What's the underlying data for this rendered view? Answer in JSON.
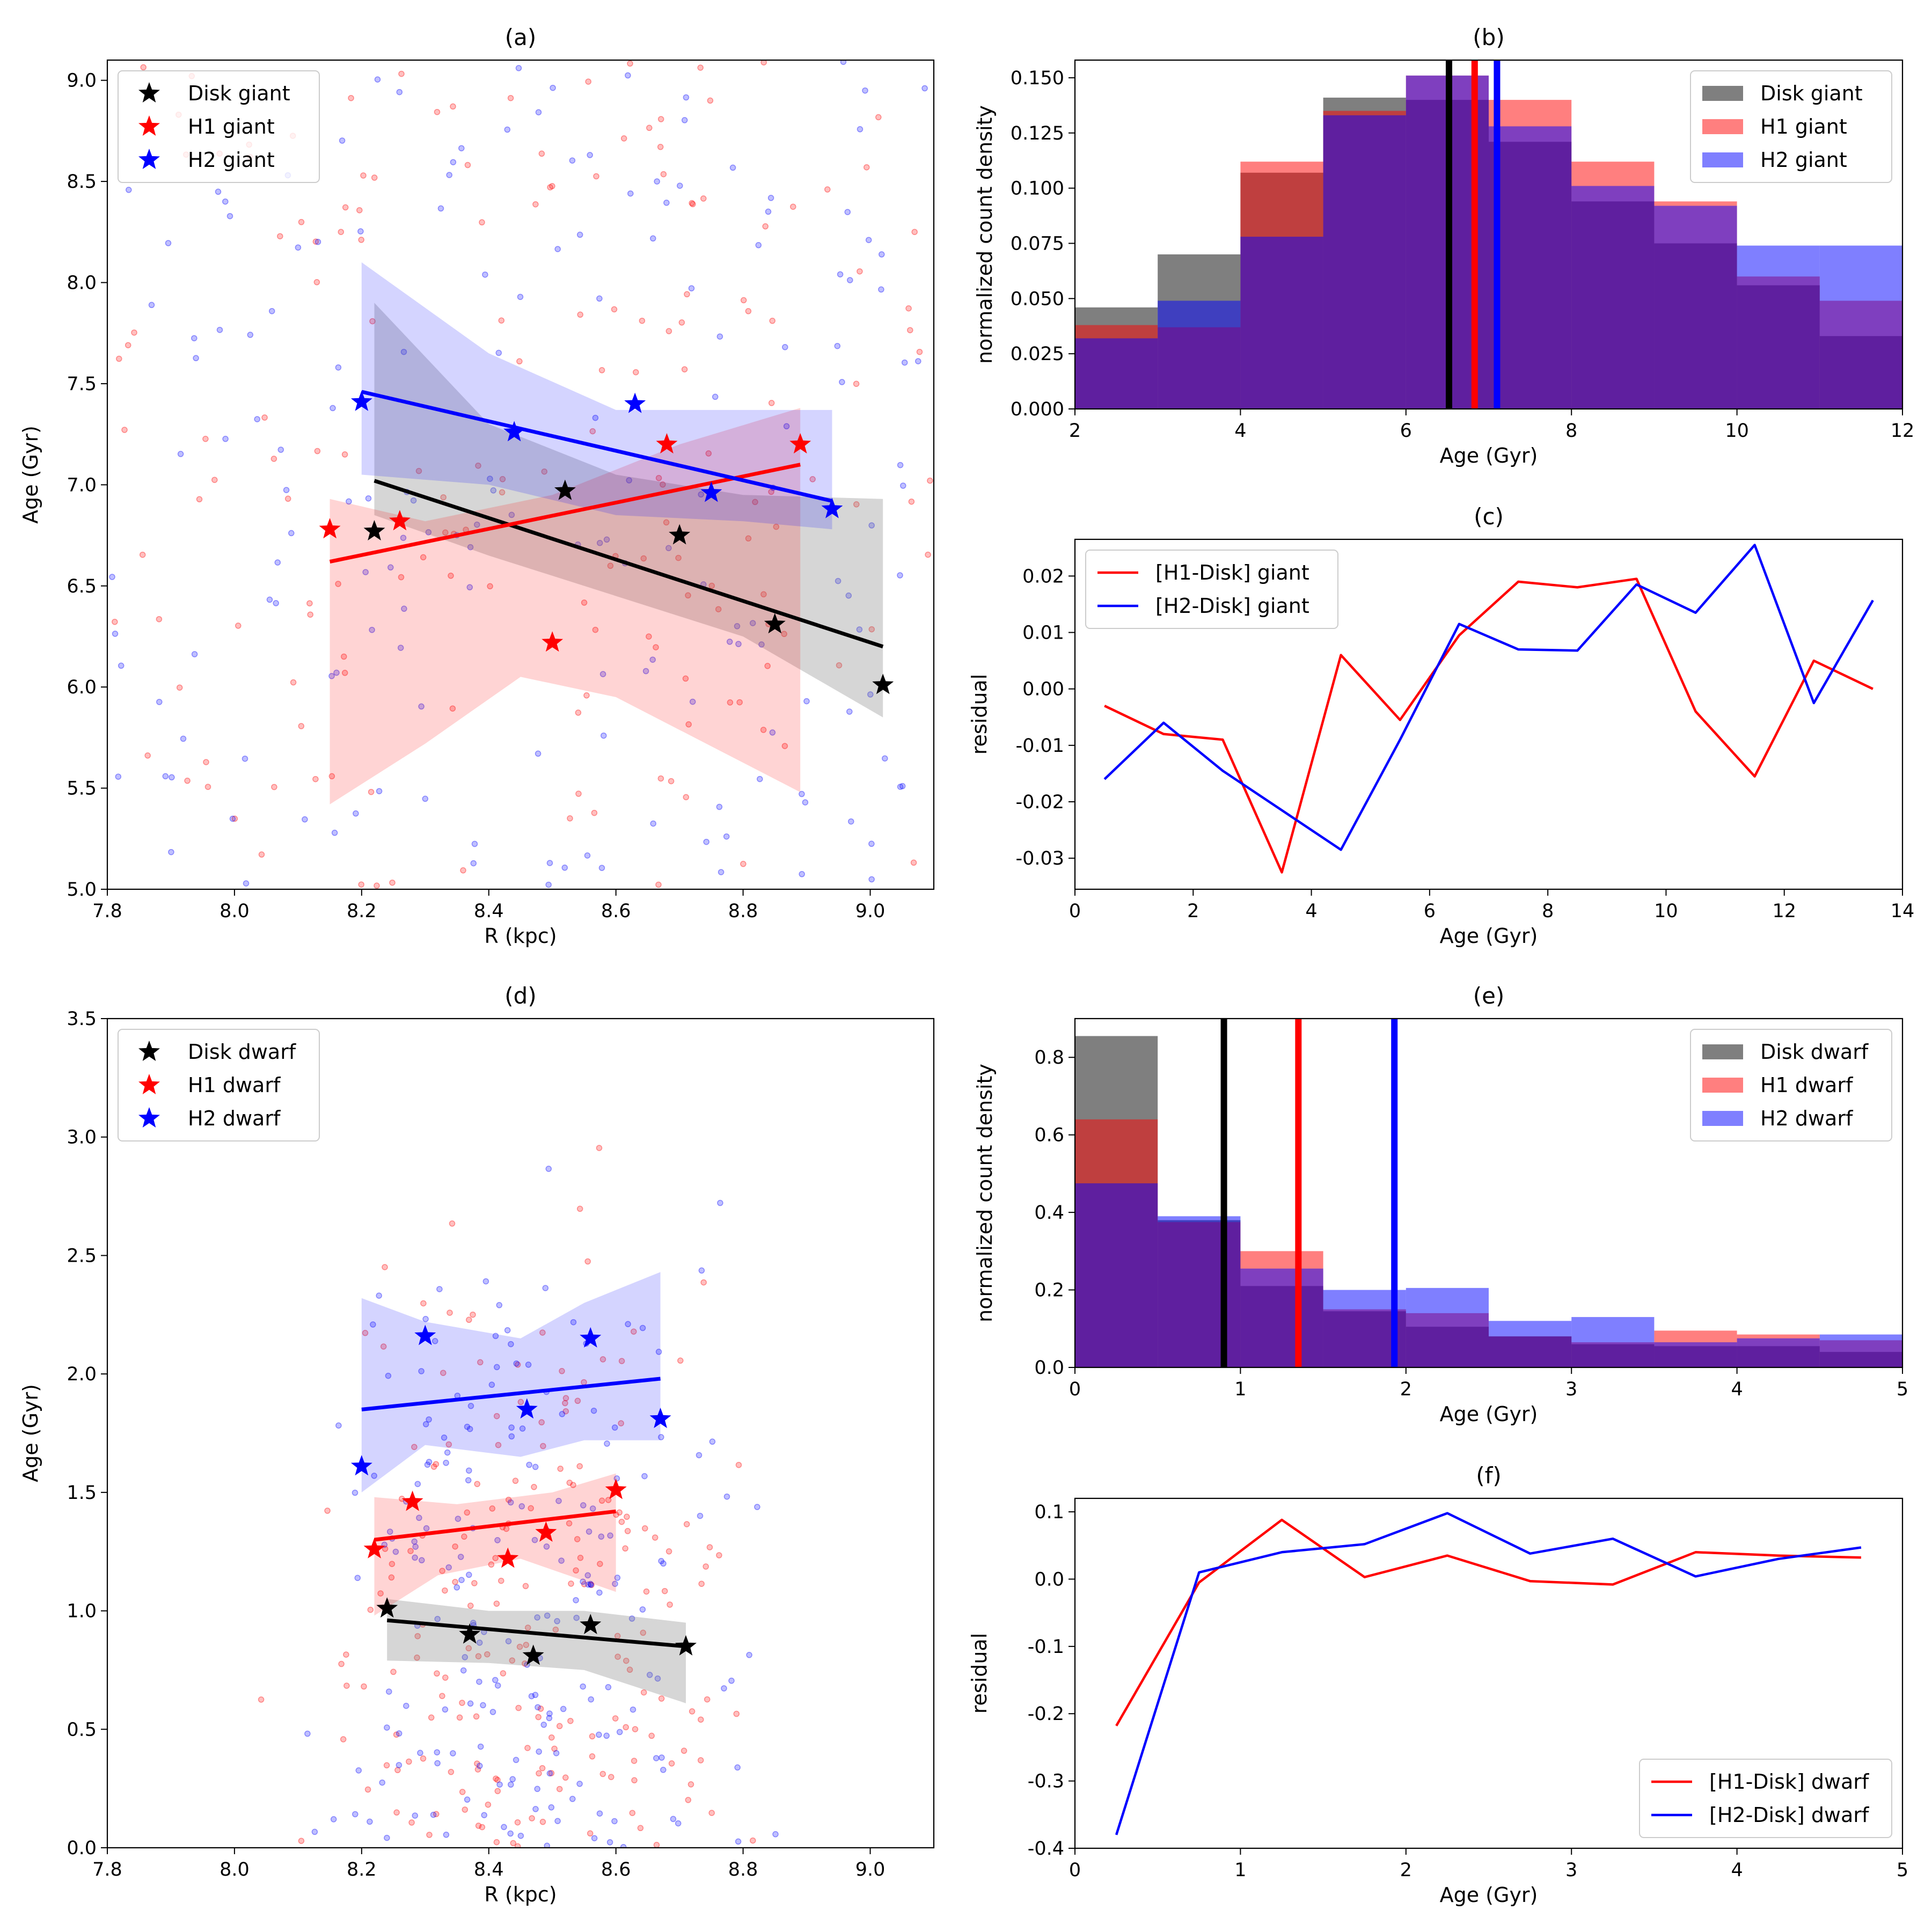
{
  "figure_note": "Six-panel figure comparing disk and halo (H1, H2) giant and dwarf stars: age versus galactocentric radius, normalized age histograms, and residuals.",
  "colors": {
    "disk": "#000000",
    "h1": "#ff0000",
    "h2": "#0000ff",
    "purple_overlap": "#5a1a9e"
  },
  "chart_data": [
    {
      "id": "a",
      "type": "scatter",
      "title": "(a)",
      "xlabel": "R (kpc)",
      "ylabel": "Age (Gyr)",
      "xlim": [
        7.8,
        9.1
      ],
      "ylim": [
        5.0,
        9.1
      ],
      "xticks": [
        "7.8",
        "8.0",
        "8.2",
        "8.4",
        "8.6",
        "8.8",
        "9.0"
      ],
      "yticks": [
        "5.0",
        "5.5",
        "6.0",
        "6.5",
        "7.0",
        "7.5",
        "8.0",
        "8.5",
        "9.0"
      ],
      "legend_position": "top-left",
      "legend": [
        "Disk giant",
        "H1 giant",
        "H2 giant"
      ],
      "series": [
        {
          "name": "Disk giant",
          "color": "#000000",
          "stars": [
            [
              8.22,
              6.77
            ],
            [
              8.52,
              6.97
            ],
            [
              8.7,
              6.75
            ],
            [
              8.85,
              6.31
            ],
            [
              9.02,
              6.01
            ]
          ],
          "fit": [
            [
              8.22,
              7.02
            ],
            [
              9.02,
              6.2
            ]
          ],
          "band_upper": [
            [
              8.22,
              7.9
            ],
            [
              8.4,
              7.3
            ],
            [
              8.6,
              7.05
            ],
            [
              8.8,
              6.95
            ],
            [
              9.02,
              6.93
            ]
          ],
          "band_lower": [
            [
              8.22,
              6.85
            ],
            [
              8.4,
              6.65
            ],
            [
              8.6,
              6.45
            ],
            [
              8.8,
              6.25
            ],
            [
              9.02,
              5.85
            ]
          ]
        },
        {
          "name": "H1 giant",
          "color": "#ff0000",
          "stars": [
            [
              8.15,
              6.78
            ],
            [
              8.26,
              6.82
            ],
            [
              8.5,
              6.22
            ],
            [
              8.68,
              7.2
            ],
            [
              8.89,
              7.2
            ]
          ],
          "fit": [
            [
              8.15,
              6.62
            ],
            [
              8.89,
              7.1
            ]
          ],
          "band_upper": [
            [
              8.15,
              6.93
            ],
            [
              8.3,
              6.82
            ],
            [
              8.5,
              6.95
            ],
            [
              8.7,
              7.2
            ],
            [
              8.89,
              7.38
            ]
          ],
          "band_lower": [
            [
              8.15,
              5.42
            ],
            [
              8.3,
              5.72
            ],
            [
              8.45,
              6.05
            ],
            [
              8.6,
              5.95
            ],
            [
              8.89,
              5.48
            ]
          ]
        },
        {
          "name": "H2 giant",
          "color": "#0000ff",
          "stars": [
            [
              8.2,
              7.41
            ],
            [
              8.44,
              7.26
            ],
            [
              8.63,
              7.4
            ],
            [
              8.75,
              6.96
            ],
            [
              8.94,
              6.88
            ]
          ],
          "fit": [
            [
              8.2,
              7.46
            ],
            [
              8.94,
              6.92
            ]
          ],
          "band_upper": [
            [
              8.2,
              8.1
            ],
            [
              8.4,
              7.65
            ],
            [
              8.6,
              7.37
            ],
            [
              8.8,
              7.37
            ],
            [
              8.94,
              7.37
            ]
          ],
          "band_lower": [
            [
              8.2,
              7.05
            ],
            [
              8.4,
              7.0
            ],
            [
              8.6,
              6.85
            ],
            [
              8.8,
              6.82
            ],
            [
              8.94,
              6.78
            ]
          ]
        }
      ],
      "scatter_background": {
        "count_per_series": 170,
        "description": "faint individual stars"
      }
    },
    {
      "id": "b",
      "type": "bar",
      "title": "(b)",
      "xlabel": "Age (Gyr)",
      "ylabel": "normalized count density",
      "xlim": [
        2,
        12
      ],
      "ylim": [
        0,
        0.158
      ],
      "xticks": [
        "2",
        "4",
        "6",
        "8",
        "10",
        "12"
      ],
      "yticks": [
        "0.000",
        "0.025",
        "0.050",
        "0.075",
        "0.100",
        "0.125",
        "0.150"
      ],
      "legend_position": "top-right",
      "legend": [
        "Disk giant",
        "H1 giant",
        "H2 giant"
      ],
      "bin_edges": [
        2,
        3,
        4,
        5,
        6,
        7,
        8,
        9,
        10,
        11,
        12
      ],
      "series": [
        {
          "name": "Disk giant",
          "color": "#000000",
          "values": [
            0.046,
            0.07,
            0.107,
            0.141,
            0.14,
            0.121,
            0.094,
            0.075,
            0.056,
            0.033
          ]
        },
        {
          "name": "H1 giant",
          "color": "#ff0000",
          "values": [
            0.038,
            0.037,
            0.112,
            0.135,
            0.151,
            0.14,
            0.112,
            0.094,
            0.06,
            0.049
          ]
        },
        {
          "name": "H2 giant",
          "color": "#0000ff",
          "values": [
            0.032,
            0.049,
            0.078,
            0.133,
            0.151,
            0.128,
            0.101,
            0.092,
            0.074,
            0.074
          ]
        }
      ],
      "median_lines": [
        {
          "name": "Disk giant",
          "x": 6.52,
          "color": "#000000"
        },
        {
          "name": "H1 giant",
          "x": 6.83,
          "color": "#ff0000"
        },
        {
          "name": "H2 giant",
          "x": 7.1,
          "color": "#0000ff"
        }
      ]
    },
    {
      "id": "c",
      "type": "line",
      "title": "(c)",
      "xlabel": "Age (Gyr)",
      "ylabel": "residual",
      "xlim": [
        0,
        14
      ],
      "ylim": [
        -0.0355,
        0.0265
      ],
      "xticks": [
        "0",
        "2",
        "4",
        "6",
        "8",
        "10",
        "12",
        "14"
      ],
      "yticks": [
        "-0.03",
        "-0.02",
        "-0.01",
        "0.00",
        "0.01",
        "0.02"
      ],
      "legend_position": "top-left",
      "legend": [
        "[H1-Disk] giant",
        "[H2-Disk] giant"
      ],
      "x": [
        0.5,
        1.5,
        2.5,
        3.5,
        4.5,
        5.5,
        6.5,
        7.5,
        8.5,
        9.5,
        10.5,
        11.5,
        12.5,
        13.5
      ],
      "series": [
        {
          "name": "[H1-Disk] giant",
          "color": "#ff0000",
          "values": [
            -0.003,
            -0.008,
            -0.009,
            -0.0325,
            0.006,
            -0.0055,
            0.0095,
            0.019,
            0.018,
            0.0195,
            -0.004,
            -0.0155,
            0.005,
            0.0
          ]
        },
        {
          "name": "[H2-Disk] giant",
          "color": "#0000ff",
          "values": [
            -0.016,
            -0.006,
            -0.0145,
            -0.0215,
            -0.0285,
            -0.009,
            0.0115,
            0.007,
            0.0068,
            0.0185,
            0.0135,
            0.0255,
            -0.0025,
            0.0157
          ]
        }
      ]
    },
    {
      "id": "d",
      "type": "scatter",
      "title": "(d)",
      "xlabel": "R (kpc)",
      "ylabel": "Age (Gyr)",
      "xlim": [
        7.8,
        9.1
      ],
      "ylim": [
        0.0,
        3.5
      ],
      "xticks": [
        "7.8",
        "8.0",
        "8.2",
        "8.4",
        "8.6",
        "8.8",
        "9.0"
      ],
      "yticks": [
        "0.0",
        "0.5",
        "1.0",
        "1.5",
        "2.0",
        "2.5",
        "3.0",
        "3.5"
      ],
      "legend_position": "top-left",
      "legend": [
        "Disk dwarf",
        "H1 dwarf",
        "H2 dwarf"
      ],
      "series": [
        {
          "name": "Disk dwarf",
          "color": "#000000",
          "stars": [
            [
              8.24,
              1.01
            ],
            [
              8.37,
              0.9
            ],
            [
              8.47,
              0.81
            ],
            [
              8.56,
              0.94
            ],
            [
              8.71,
              0.85
            ]
          ],
          "fit": [
            [
              8.24,
              0.96
            ],
            [
              8.71,
              0.85
            ]
          ],
          "band_upper": [
            [
              8.24,
              1.05
            ],
            [
              8.4,
              1.0
            ],
            [
              8.55,
              1.0
            ],
            [
              8.71,
              0.95
            ]
          ],
          "band_lower": [
            [
              8.24,
              0.79
            ],
            [
              8.4,
              0.78
            ],
            [
              8.55,
              0.75
            ],
            [
              8.71,
              0.61
            ]
          ]
        },
        {
          "name": "H1 dwarf",
          "color": "#ff0000",
          "stars": [
            [
              8.22,
              1.26
            ],
            [
              8.28,
              1.46
            ],
            [
              8.43,
              1.22
            ],
            [
              8.49,
              1.33
            ],
            [
              8.6,
              1.51
            ]
          ],
          "fit": [
            [
              8.22,
              1.3
            ],
            [
              8.6,
              1.42
            ]
          ],
          "band_upper": [
            [
              8.22,
              1.48
            ],
            [
              8.35,
              1.45
            ],
            [
              8.5,
              1.5
            ],
            [
              8.6,
              1.58
            ]
          ],
          "band_lower": [
            [
              8.22,
              0.98
            ],
            [
              8.32,
              1.15
            ],
            [
              8.45,
              1.22
            ],
            [
              8.6,
              1.08
            ]
          ]
        },
        {
          "name": "H2 dwarf",
          "color": "#0000ff",
          "stars": [
            [
              8.2,
              1.61
            ],
            [
              8.3,
              2.16
            ],
            [
              8.46,
              1.85
            ],
            [
              8.56,
              2.15
            ],
            [
              8.67,
              1.81
            ]
          ],
          "fit": [
            [
              8.2,
              1.85
            ],
            [
              8.67,
              1.98
            ]
          ],
          "band_upper": [
            [
              8.2,
              2.32
            ],
            [
              8.3,
              2.22
            ],
            [
              8.45,
              2.15
            ],
            [
              8.55,
              2.3
            ],
            [
              8.67,
              2.43
            ]
          ],
          "band_lower": [
            [
              8.2,
              1.5
            ],
            [
              8.3,
              1.7
            ],
            [
              8.45,
              1.65
            ],
            [
              8.55,
              1.72
            ],
            [
              8.67,
              1.72
            ]
          ]
        }
      ],
      "scatter_background": {
        "count_per_series": 200,
        "description": "faint individual stars"
      }
    },
    {
      "id": "e",
      "type": "bar",
      "title": "(e)",
      "xlabel": "Age (Gyr)",
      "ylabel": "normalized count density",
      "xlim": [
        0,
        5
      ],
      "ylim": [
        0,
        0.9
      ],
      "xticks": [
        "0",
        "1",
        "2",
        "3",
        "4",
        "5"
      ],
      "yticks": [
        "0.0",
        "0.2",
        "0.4",
        "0.6",
        "0.8"
      ],
      "legend_position": "top-right",
      "legend": [
        "Disk dwarf",
        "H1 dwarf",
        "H2 dwarf"
      ],
      "bin_edges": [
        0,
        0.5,
        1.0,
        1.5,
        2.0,
        2.5,
        3.0,
        3.5,
        4.0,
        4.5,
        5.0
      ],
      "series": [
        {
          "name": "Disk dwarf",
          "color": "#000000",
          "values": [
            0.855,
            0.38,
            0.21,
            0.145,
            0.105,
            0.08,
            0.06,
            0.055,
            0.055,
            0.04
          ]
        },
        {
          "name": "H1 dwarf",
          "color": "#ff0000",
          "values": [
            0.64,
            0.375,
            0.3,
            0.15,
            0.14,
            0.08,
            0.065,
            0.095,
            0.085,
            0.07
          ]
        },
        {
          "name": "H2 dwarf",
          "color": "#0000ff",
          "values": [
            0.475,
            0.39,
            0.255,
            0.2,
            0.205,
            0.12,
            0.13,
            0.065,
            0.075,
            0.085
          ]
        }
      ],
      "median_lines": [
        {
          "name": "Disk dwarf",
          "x": 0.9,
          "color": "#000000"
        },
        {
          "name": "H1 dwarf",
          "x": 1.35,
          "color": "#ff0000"
        },
        {
          "name": "H2 dwarf",
          "x": 1.93,
          "color": "#0000ff"
        }
      ]
    },
    {
      "id": "f",
      "type": "line",
      "title": "(f)",
      "xlabel": "Age (Gyr)",
      "ylabel": "residual",
      "xlim": [
        0,
        5
      ],
      "ylim": [
        -0.4,
        0.12
      ],
      "xticks": [
        "0",
        "1",
        "2",
        "3",
        "4",
        "5"
      ],
      "yticks": [
        "-0.4",
        "-0.3",
        "-0.2",
        "-0.1",
        "0.0",
        "0.1"
      ],
      "legend_position": "bottom-right",
      "legend": [
        "[H1-Disk] dwarf",
        "[H2-Disk] dwarf"
      ],
      "x": [
        0.25,
        0.75,
        1.25,
        1.75,
        2.25,
        2.75,
        3.25,
        3.75,
        4.25,
        4.75
      ],
      "series": [
        {
          "name": "[H1-Disk] dwarf",
          "color": "#ff0000",
          "values": [
            -0.218,
            -0.005,
            0.088,
            0.003,
            0.035,
            -0.003,
            -0.008,
            0.04,
            0.035,
            0.032
          ]
        },
        {
          "name": "[H2-Disk] dwarf",
          "color": "#0000ff",
          "values": [
            -0.38,
            0.01,
            0.04,
            0.052,
            0.098,
            0.038,
            0.06,
            0.004,
            0.03,
            0.047
          ]
        }
      ]
    }
  ]
}
